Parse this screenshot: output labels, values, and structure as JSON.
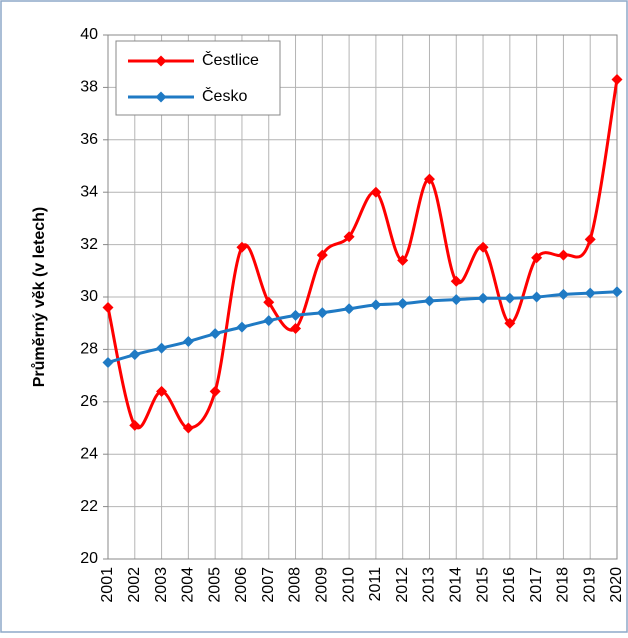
{
  "chart_data": {
    "type": "line",
    "y_label": "Průměrný věk (v letech)",
    "categories": [
      "2001",
      "2002",
      "2003",
      "2004",
      "2005",
      "2006",
      "2007",
      "2008",
      "2009",
      "2010",
      "2011",
      "2012",
      "2013",
      "2014",
      "2015",
      "2016",
      "2017",
      "2018",
      "2019",
      "2020"
    ],
    "series": [
      {
        "name": "Čestlice",
        "color": "#ff0000",
        "values": [
          29.6,
          25.1,
          26.4,
          25.0,
          26.4,
          31.9,
          29.8,
          28.8,
          31.6,
          32.3,
          34.0,
          31.4,
          34.5,
          30.6,
          31.9,
          29.0,
          31.5,
          31.6,
          32.2,
          38.3
        ]
      },
      {
        "name": "Česko",
        "color": "#1f7ac4",
        "values": [
          27.5,
          27.8,
          28.05,
          28.3,
          28.6,
          28.85,
          29.1,
          29.3,
          29.4,
          29.55,
          29.7,
          29.75,
          29.85,
          29.9,
          29.95,
          29.95,
          30.0,
          30.1,
          30.15,
          30.2
        ]
      }
    ],
    "ylim": [
      20,
      40
    ],
    "yticks": [
      20,
      22,
      24,
      26,
      28,
      30,
      32,
      34,
      36,
      38,
      40
    ],
    "grid": true,
    "legend": "top-left",
    "smooth": true
  }
}
